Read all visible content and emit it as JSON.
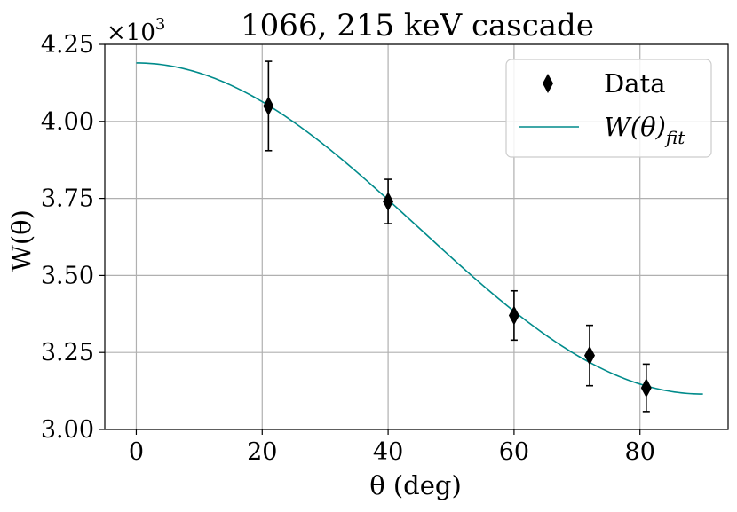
{
  "chart_data": {
    "type": "scatter",
    "title": "1066, 215 keV cascade",
    "xlabel": "θ (deg)",
    "ylabel": "W(θ)",
    "y_offset_label": "×10",
    "y_offset_exponent": "3",
    "xlim": [
      -5,
      94
    ],
    "ylim": [
      3.0,
      4.25
    ],
    "grid": true,
    "xticks": [
      0,
      20,
      40,
      60,
      80
    ],
    "xtick_labels": [
      "0",
      "20",
      "40",
      "60",
      "80"
    ],
    "yticks": [
      3.0,
      3.25,
      3.5,
      3.75,
      4.0,
      4.25
    ],
    "ytick_labels": [
      "3.00",
      "3.25",
      "3.50",
      "3.75",
      "4.00",
      "4.25"
    ],
    "legend_position": "top-right",
    "series": [
      {
        "name": "Data",
        "kind": "errorbar",
        "marker": "diamond",
        "x": [
          21,
          40,
          60,
          72,
          81
        ],
        "y": [
          4.05,
          3.74,
          3.37,
          3.24,
          3.135
        ],
        "yerr": [
          0.145,
          0.072,
          0.08,
          0.098,
          0.077
        ]
      },
      {
        "name": "W(θ)",
        "name_subscript": "fit",
        "kind": "line",
        "color": "#008b8b",
        "function": "A0*(1 + a2*cos^2(theta) + a4*cos^4(theta))",
        "params": {
          "A0": 3.115,
          "a2": 0.345,
          "a4": 0.0
        },
        "x_range": [
          0,
          90
        ]
      }
    ]
  }
}
